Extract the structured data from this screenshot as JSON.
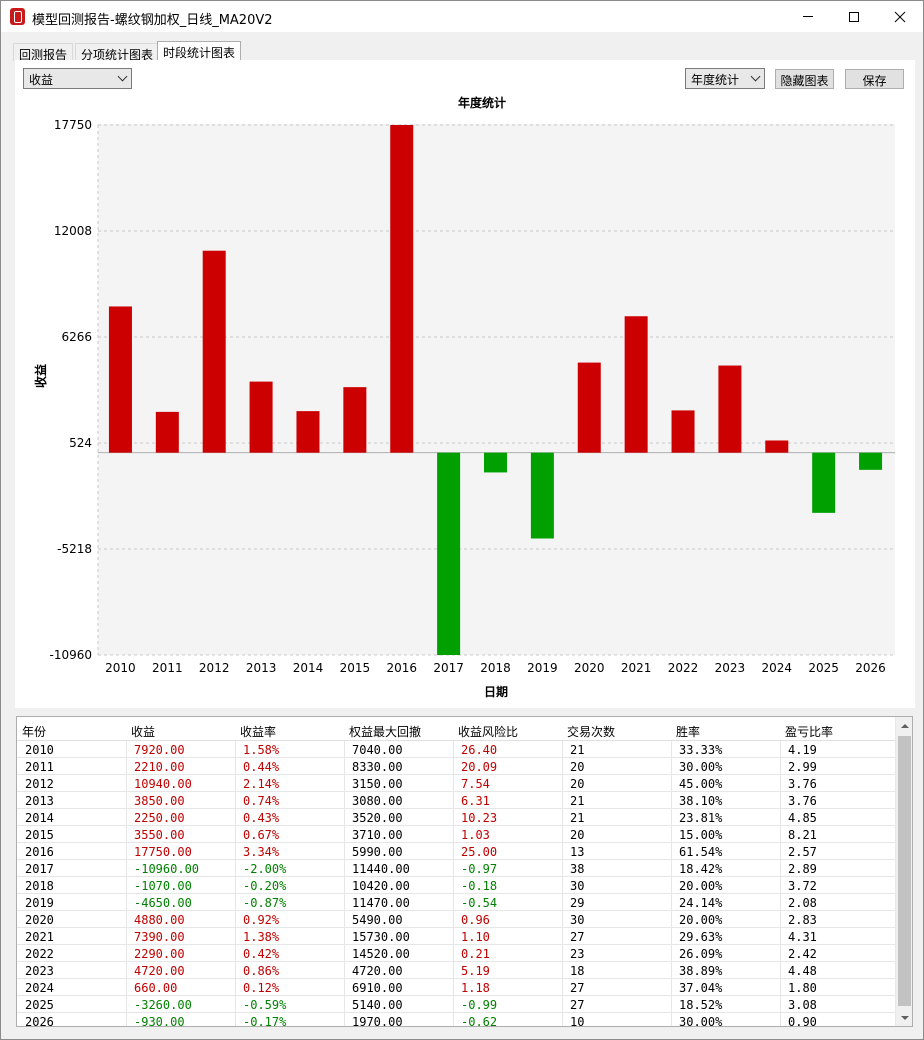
{
  "window": {
    "title": "模型回测报告-螺纹钢加权_日线_MA20V2",
    "brand_color": "#c81a1a"
  },
  "tabs": [
    {
      "label": "回测报告",
      "active": false
    },
    {
      "label": "分项统计图表",
      "active": false
    },
    {
      "label": "时段统计图表",
      "active": true
    }
  ],
  "toolbar": {
    "metric_select": "收益",
    "period_select": "年度统计",
    "hide_chart_label": "隐藏图表",
    "save_label": "保存"
  },
  "chart_data": {
    "type": "bar",
    "title": "年度统计",
    "xlabel": "日期",
    "ylabel": "收益",
    "categories": [
      "2010",
      "2011",
      "2012",
      "2013",
      "2014",
      "2015",
      "2016",
      "2017",
      "2018",
      "2019",
      "2020",
      "2021",
      "2022",
      "2023",
      "2024",
      "2025",
      "2026"
    ],
    "values": [
      7920,
      2210,
      10940,
      3850,
      2250,
      3550,
      17750,
      -10960,
      -1070,
      -4650,
      4880,
      7390,
      2290,
      4720,
      660,
      -3260,
      -930
    ],
    "yticks": [
      "17750",
      "12008",
      "6266",
      "524",
      "-5218",
      "-10960"
    ],
    "ytick_values": [
      17750,
      12008,
      6266,
      524,
      -5218,
      -10960
    ],
    "ylim": [
      -10960,
      17750
    ],
    "grid": true,
    "positive_color": "#cc0000",
    "negative_color": "#00a000"
  },
  "table": {
    "columns": [
      "年份",
      "收益",
      "收益率",
      "权益最大回撤",
      "收益风险比",
      "交易次数",
      "胜率",
      "盈亏比率"
    ],
    "rows": [
      [
        "2010",
        "7920.00",
        "1.58%",
        "7040.00",
        "26.40",
        "21",
        "33.33%",
        "4.19"
      ],
      [
        "2011",
        "2210.00",
        "0.44%",
        "8330.00",
        "20.09",
        "20",
        "30.00%",
        "2.99"
      ],
      [
        "2012",
        "10940.00",
        "2.14%",
        "3150.00",
        "7.54",
        "20",
        "45.00%",
        "3.76"
      ],
      [
        "2013",
        "3850.00",
        "0.74%",
        "3080.00",
        "6.31",
        "21",
        "38.10%",
        "3.76"
      ],
      [
        "2014",
        "2250.00",
        "0.43%",
        "3520.00",
        "10.23",
        "21",
        "23.81%",
        "4.85"
      ],
      [
        "2015",
        "3550.00",
        "0.67%",
        "3710.00",
        "1.03",
        "20",
        "15.00%",
        "8.21"
      ],
      [
        "2016",
        "17750.00",
        "3.34%",
        "5990.00",
        "25.00",
        "13",
        "61.54%",
        "2.57"
      ],
      [
        "2017",
        "-10960.00",
        "-2.00%",
        "11440.00",
        "-0.97",
        "38",
        "18.42%",
        "2.89"
      ],
      [
        "2018",
        "-1070.00",
        "-0.20%",
        "10420.00",
        "-0.18",
        "30",
        "20.00%",
        "3.72"
      ],
      [
        "2019",
        "-4650.00",
        "-0.87%",
        "11470.00",
        "-0.54",
        "29",
        "24.14%",
        "2.08"
      ],
      [
        "2020",
        "4880.00",
        "0.92%",
        "5490.00",
        "0.96",
        "30",
        "20.00%",
        "2.83"
      ],
      [
        "2021",
        "7390.00",
        "1.38%",
        "15730.00",
        "1.10",
        "27",
        "29.63%",
        "4.31"
      ],
      [
        "2022",
        "2290.00",
        "0.42%",
        "14520.00",
        "0.21",
        "23",
        "26.09%",
        "2.42"
      ],
      [
        "2023",
        "4720.00",
        "0.86%",
        "4720.00",
        "5.19",
        "18",
        "38.89%",
        "4.48"
      ],
      [
        "2024",
        "660.00",
        "0.12%",
        "6910.00",
        "1.18",
        "27",
        "37.04%",
        "1.80"
      ],
      [
        "2025",
        "-3260.00",
        "-0.59%",
        "5140.00",
        "-0.99",
        "27",
        "18.52%",
        "3.08"
      ],
      [
        "2026",
        "-930.00",
        "-0.17%",
        "1970.00",
        "-0.62",
        "10",
        "30.00%",
        "0.90"
      ]
    ]
  }
}
